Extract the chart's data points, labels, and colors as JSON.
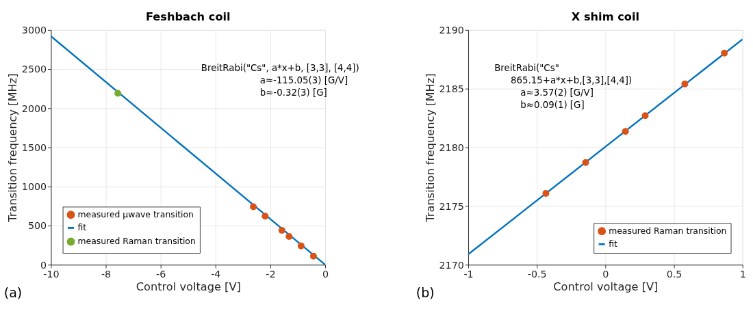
{
  "chart_data": [
    {
      "type": "scatter",
      "title": "Feshbach coil",
      "xlabel": "Control voltage [V]",
      "ylabel": "Transition frequency [MHz]",
      "xlim": [
        -10,
        0
      ],
      "xticks": [
        -10,
        -8,
        -6,
        -4,
        -2,
        0
      ],
      "ylim": [
        0,
        3000
      ],
      "yticks": [
        0,
        500,
        1000,
        1500,
        2000,
        2500,
        3000
      ],
      "grid": true,
      "legend": "bottom left",
      "annotations": [
        "BreitRabi(\"Cs\", a*x+b, [3,3], [4,4])",
        "a≈-115.05(3) [G/V]",
        "b≈-0.32(3) [G]",
        "(a)"
      ],
      "series": [
        {
          "name": "measured µwave transition",
          "marker": "circle",
          "color": "#d95319",
          "x": [
            -2.62,
            -2.19,
            -1.58,
            -1.32,
            -0.88,
            -0.43
          ],
          "values": [
            740,
            620,
            440,
            360,
            240,
            110
          ]
        },
        {
          "name": "fit",
          "type": "line",
          "line_style": "solid",
          "color": "#0072bd",
          "x": [
            -10,
            0
          ],
          "values": [
            2920,
            0
          ]
        },
        {
          "name": "measured Raman transition",
          "marker": "circle",
          "color": "#77ac30",
          "x": [
            -7.56
          ],
          "values": [
            2190
          ]
        }
      ]
    },
    {
      "type": "scatter",
      "title": "X shim coil",
      "xlabel": "Control voltage [V]",
      "ylabel": "Transition frequency [MHz]",
      "xlim": [
        -1,
        1
      ],
      "xticks": [
        -1,
        -0.5,
        0,
        0.5,
        1
      ],
      "ylim": [
        2170,
        2190
      ],
      "yticks": [
        2170,
        2175,
        2180,
        2185,
        2190
      ],
      "grid": true,
      "legend": "bottom right",
      "annotations": [
        "BreitRabi(\"Cs\"",
        "865.15+a*x+b,[3,3],[4,4])",
        "a≈3.57(2) [G/V]",
        "b≈0.09(1) [G]",
        "(b)"
      ],
      "series": [
        {
          "name": "measured Raman transition",
          "marker": "circle",
          "color": "#d95319",
          "x": [
            -0.434,
            -0.144,
            0.146,
            0.29,
            0.579,
            0.867
          ],
          "values": [
            2176.08,
            2178.71,
            2181.36,
            2182.7,
            2185.4,
            2188.03
          ]
        },
        {
          "name": "fit",
          "type": "line",
          "line_style": "solid",
          "color": "#0072bd",
          "x": [
            -1,
            1
          ],
          "values": [
            2170.89,
            2189.21
          ]
        }
      ]
    }
  ]
}
